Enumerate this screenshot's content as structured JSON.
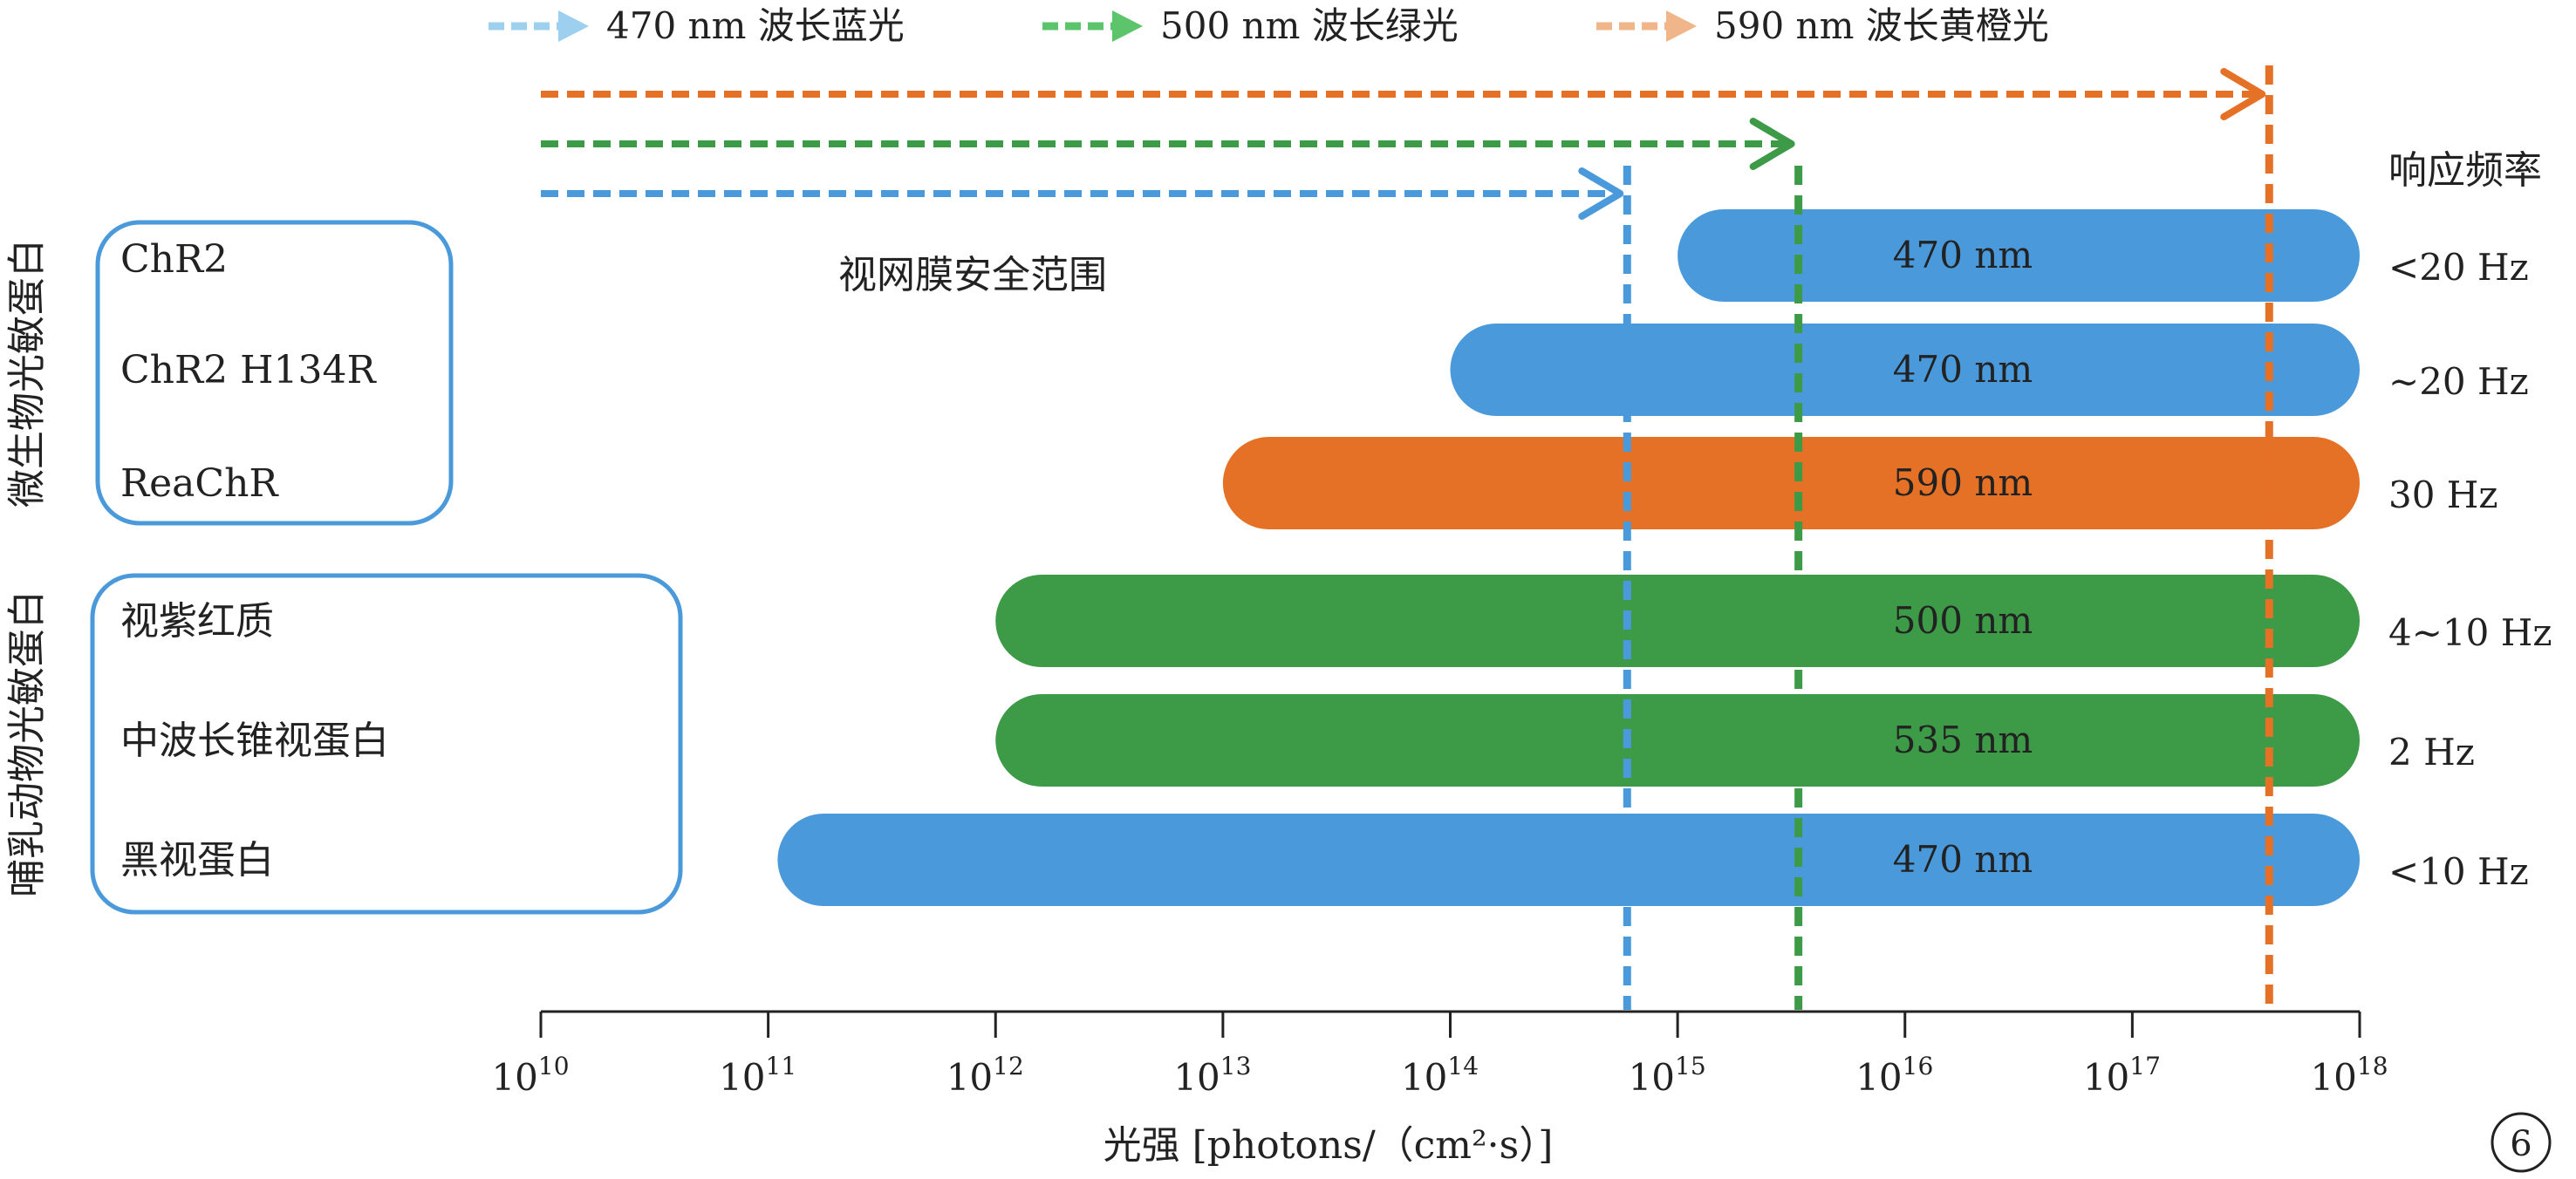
{
  "chart_data": {
    "type": "bar",
    "orientation": "horizontal-range",
    "xscale": "log",
    "xlim": [
      10000000000.0,
      1e+18
    ],
    "xlabel": "光强 [photons/（cm²·s）]",
    "x_ticks": [
      {
        "value": 10000000000.0,
        "base": "10",
        "exp": "10"
      },
      {
        "value": 100000000000.0,
        "base": "10",
        "exp": "11"
      },
      {
        "value": 1000000000000.0,
        "base": "10",
        "exp": "12"
      },
      {
        "value": 10000000000000.0,
        "base": "10",
        "exp": "13"
      },
      {
        "value": 100000000000000.0,
        "base": "10",
        "exp": "14"
      },
      {
        "value": 1000000000000000.0,
        "base": "10",
        "exp": "15"
      },
      {
        "value": 1e+16,
        "base": "10",
        "exp": "16"
      },
      {
        "value": 1e+17,
        "base": "10",
        "exp": "17"
      },
      {
        "value": 1e+18,
        "base": "10",
        "exp": "18"
      }
    ],
    "legend": [
      {
        "label": "470 nm 波长蓝光",
        "color": "#4a9adb",
        "light": "#9dd0ee"
      },
      {
        "label": "500 nm 波长绿光",
        "color": "#3d9a47",
        "light": "#5cc46a"
      },
      {
        "label": "590 nm 波长黄橙光",
        "color": "#e57126",
        "light": "#f1b58a"
      }
    ],
    "safety_limits": [
      {
        "name": "470 nm",
        "value": 600000000000000.0,
        "color": "#4a9adb"
      },
      {
        "name": "500 nm",
        "value": 3400000000000000.0,
        "color": "#3d9a47"
      },
      {
        "name": "590 nm",
        "value": 4e+17,
        "color": "#e57126"
      }
    ],
    "annotation": "视网膜安全范围",
    "freq_header": "响应频率",
    "groups": [
      {
        "label": "微生物光敏蛋白",
        "members": [
          0,
          1,
          2
        ]
      },
      {
        "label": "哺乳动物光敏蛋白",
        "members": [
          3,
          4,
          5
        ]
      }
    ],
    "bars": [
      {
        "protein": "ChR2",
        "label": "470 nm",
        "start": 1000000000000000.0,
        "end": 1e+18,
        "color": "#4a9adb",
        "freq": "<20 Hz"
      },
      {
        "protein": "ChR2 H134R",
        "label": "470 nm",
        "start": 100000000000000.0,
        "end": 1e+18,
        "color": "#4a9adb",
        "freq": "~20 Hz"
      },
      {
        "protein": "ReaChR",
        "label": "590 nm",
        "start": 10000000000000.0,
        "end": 1e+18,
        "color": "#e57126",
        "freq": "30 Hz"
      },
      {
        "protein": "视紫红质",
        "label": "500 nm",
        "start": 1000000000000.0,
        "end": 1e+18,
        "color": "#3d9a47",
        "freq": "4~10 Hz"
      },
      {
        "protein": "中波长锥视蛋白",
        "label": "535 nm",
        "start": 1000000000000.0,
        "end": 1e+18,
        "color": "#3d9a47",
        "freq": "2 Hz"
      },
      {
        "protein": "黑视蛋白",
        "label": "470 nm",
        "start": 110000000000.0,
        "end": 1e+18,
        "color": "#4a9adb",
        "freq": "<10 Hz"
      }
    ],
    "panel_number": "6"
  }
}
